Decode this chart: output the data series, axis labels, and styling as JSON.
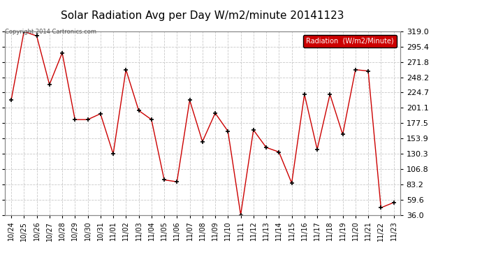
{
  "title": "Solar Radiation Avg per Day W/m2/minute 20141123",
  "copyright": "Copyright 2014 Cartronics.com",
  "legend_label": "Radiation  (W/m2/Minute)",
  "dates": [
    "10/24",
    "10/25",
    "10/26",
    "10/27",
    "10/28",
    "10/29",
    "10/30",
    "10/31",
    "11/01",
    "11/02",
    "11/03",
    "11/04",
    "11/05",
    "11/06",
    "11/07",
    "11/08",
    "11/09",
    "11/10",
    "11/11",
    "11/12",
    "11/13",
    "11/14",
    "11/15",
    "11/16",
    "11/17",
    "11/18",
    "11/19",
    "11/20",
    "11/21",
    "11/22",
    "11/23"
  ],
  "values": [
    213,
    319,
    312,
    237,
    286,
    183,
    183,
    192,
    130,
    260,
    197,
    183,
    90,
    87,
    213,
    149,
    193,
    165,
    36,
    167,
    140,
    133,
    85,
    222,
    137,
    222,
    160,
    260,
    258,
    47,
    55
  ],
  "line_color": "#cc0000",
  "marker_color": "#000000",
  "background_color": "#ffffff",
  "grid_color": "#bbbbbb",
  "y_ticks": [
    36.0,
    59.6,
    83.2,
    106.8,
    130.3,
    153.9,
    177.5,
    201.1,
    224.7,
    248.2,
    271.8,
    295.4,
    319.0
  ],
  "ymin": 36.0,
  "ymax": 319.0,
  "title_fontsize": 11,
  "tick_fontsize": 8,
  "legend_bg": "#cc0000",
  "legend_text_color": "#ffffff"
}
